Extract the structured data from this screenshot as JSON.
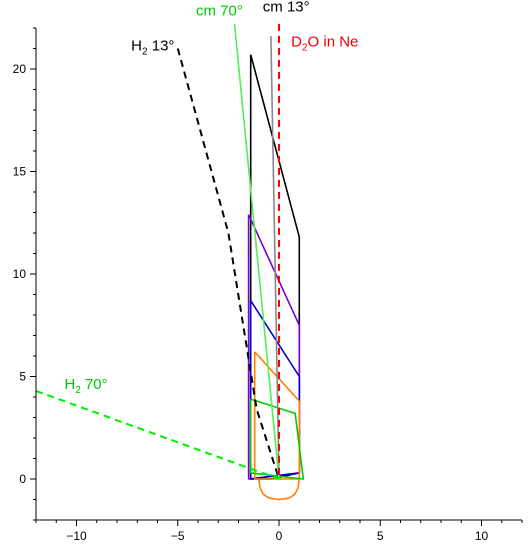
{
  "chart_data": {
    "type": "line",
    "xlim": [
      -12,
      12
    ],
    "ylim": [
      -2,
      22
    ],
    "x_ticks": [
      -10,
      -5,
      0,
      5,
      10
    ],
    "y_ticks": [
      0,
      5,
      10,
      15,
      20
    ],
    "x_tick_labels": [
      "−10",
      "−5",
      "0",
      "5",
      "10"
    ],
    "y_tick_labels": [
      "0",
      "5",
      "10",
      "15",
      "20"
    ],
    "grid": false,
    "series": [
      {
        "color": "#000000",
        "style": "solid",
        "points": [
          [
            -1.4,
            20.7
          ],
          [
            -1.4,
            0.0
          ],
          [
            -0.4,
            0.0
          ],
          [
            1.0,
            0.3
          ],
          [
            1.0,
            11.8
          ],
          [
            -1.4,
            20.7
          ]
        ]
      },
      {
        "color": "#7b00c8",
        "style": "solid",
        "points": [
          [
            -1.5,
            12.9
          ],
          [
            -1.5,
            0.0
          ],
          [
            1.0,
            0.3
          ],
          [
            1.0,
            7.5
          ],
          [
            -1.5,
            12.9
          ]
        ]
      },
      {
        "color": "#0000dd",
        "style": "solid",
        "points": [
          [
            -1.4,
            8.7
          ],
          [
            -1.4,
            0.0
          ],
          [
            1.0,
            0.3
          ],
          [
            1.0,
            5.0
          ],
          [
            -1.4,
            8.7
          ]
        ]
      },
      {
        "color": "#ff7f00",
        "style": "solid",
        "points": [
          [
            -1.2,
            6.2
          ],
          [
            -1.2,
            0.0
          ],
          [
            1.0,
            0.0
          ],
          [
            1.0,
            3.8
          ],
          [
            -1.2,
            6.2
          ]
        ]
      },
      {
        "color": "#00cc00",
        "style": "solid",
        "points": [
          [
            -1.4,
            3.9
          ],
          [
            -1.4,
            0.3
          ],
          [
            1.2,
            0.0
          ],
          [
            0.8,
            3.2
          ],
          [
            -1.4,
            3.9
          ]
        ]
      },
      {
        "color": "#888888",
        "style": "solid",
        "points": [
          [
            -0.4,
            21.6
          ],
          [
            0.0,
            0.0
          ]
        ]
      },
      {
        "color": "#ff7f00",
        "style": "solid",
        "points": [
          [
            1.0,
            0.0
          ],
          [
            0.94,
            -0.43
          ],
          [
            0.78,
            -0.74
          ],
          [
            0.5,
            -0.93
          ],
          [
            0.0,
            -1.0
          ],
          [
            -0.5,
            -0.93
          ],
          [
            -0.78,
            -0.74
          ],
          [
            -0.94,
            -0.43
          ],
          [
            -1.0,
            0.0
          ]
        ]
      },
      {
        "color": "#000000",
        "style": "dashed",
        "points": [
          [
            -5.0,
            21.0
          ],
          [
            -2.5,
            12.0
          ],
          [
            -1.1,
            3.4
          ],
          [
            0.0,
            0.0
          ]
        ]
      },
      {
        "color": "#55ee55",
        "style": "solid",
        "points": [
          [
            -2.2,
            22.2
          ],
          [
            0.0,
            0.0
          ]
        ]
      },
      {
        "color": "#00ee00",
        "style": "dashed",
        "points": [
          [
            -12.0,
            4.3
          ],
          [
            0.0,
            0.0
          ]
        ]
      },
      {
        "color": "#ff0000",
        "style": "dashed",
        "points": [
          [
            0.0,
            22.2
          ],
          [
            0.0,
            0.0
          ]
        ]
      }
    ],
    "annotations": [
      {
        "text": "cm 70°",
        "color": "#00cc00",
        "x": -4.1,
        "y": 22.6
      },
      {
        "text": "cm 13°",
        "color": "#000000",
        "x": -0.8,
        "y": 22.8
      },
      {
        "text_main": "H",
        "text_sub": "2",
        "text_rest": " 13°",
        "color": "#000000",
        "x": -7.3,
        "y": 20.9
      },
      {
        "text_main": "D",
        "text_sub": "2",
        "text_rest": "O in Ne",
        "color": "#ee0000",
        "x": 0.6,
        "y": 21.1
      },
      {
        "text_main": "H",
        "text_sub": "2",
        "text_rest": " 70°",
        "color": "#00cc00",
        "x": -10.6,
        "y": 4.4
      }
    ],
    "title": "",
    "xlabel": "",
    "ylabel": ""
  }
}
